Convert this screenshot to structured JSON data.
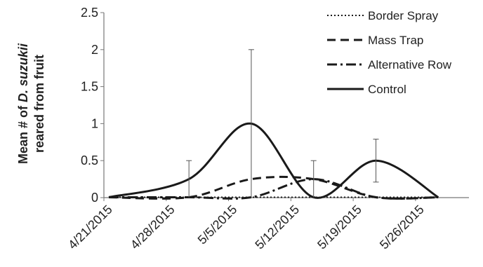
{
  "chart_data": {
    "type": "line",
    "ylabel": {
      "line1_prefix": "Mean # of ",
      "line1_italic": "D. suzukii",
      "line2": "reared from fruit"
    },
    "x_tick_labels": [
      "4/21/2015",
      "4/28/2015",
      "5/5/2015",
      "5/12/2015",
      "5/19/2015",
      "5/26/2015"
    ],
    "ylim": [
      0,
      2.5
    ],
    "y_ticks": [
      "0",
      "0.5",
      "1",
      "1.5",
      "2",
      "2.5"
    ],
    "grid": false,
    "legend_position": "top-right",
    "series": [
      {
        "name": "Border Spray",
        "style": "dotted",
        "points": [
          [
            "4/21/2015",
            0
          ],
          [
            "4/30/2015",
            0
          ],
          [
            "5/7/2015",
            0
          ],
          [
            "5/14/2015",
            0
          ],
          [
            "5/21/2015",
            0
          ],
          [
            "5/28/2015",
            0
          ]
        ]
      },
      {
        "name": "Mass Trap",
        "style": "dashed",
        "points": [
          [
            "4/21/2015",
            0
          ],
          [
            "4/30/2015",
            0
          ],
          [
            "5/7/2015",
            0.25
          ],
          [
            "5/14/2015",
            0.25
          ],
          [
            "5/21/2015",
            0
          ],
          [
            "5/28/2015",
            0
          ]
        ]
      },
      {
        "name": "Alternative Row",
        "style": "dash-dot",
        "points": [
          [
            "4/21/2015",
            0
          ],
          [
            "4/30/2015",
            0
          ],
          [
            "5/7/2015",
            0
          ],
          [
            "5/14/2015",
            0.25
          ],
          [
            "5/21/2015",
            0
          ],
          [
            "5/28/2015",
            0
          ]
        ]
      },
      {
        "name": "Control",
        "style": "solid",
        "points": [
          [
            "4/21/2015",
            0
          ],
          [
            "4/30/2015",
            0.25
          ],
          [
            "5/7/2015",
            1.0
          ],
          [
            "5/14/2015",
            0
          ],
          [
            "5/21/2015",
            0.5
          ],
          [
            "5/28/2015",
            0
          ]
        ]
      }
    ],
    "error_bars": [
      {
        "x": "4/30/2015",
        "low": 0,
        "high": 0.5
      },
      {
        "x": "5/7/2015",
        "low": 0,
        "high": 2.0
      },
      {
        "x": "5/14/2015",
        "low": 0,
        "high": 0.5
      },
      {
        "x": "5/21/2015",
        "low": 0.21,
        "high": 0.79
      }
    ]
  },
  "colors": {
    "line": "#1a1a1a",
    "axis": "#777777",
    "errorbar": "#555555"
  }
}
